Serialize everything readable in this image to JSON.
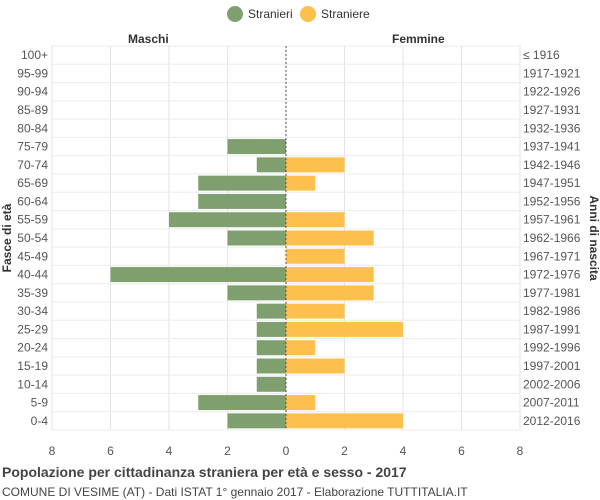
{
  "chart_data": {
    "type": "bar",
    "orientation": "horizontal-population-pyramid",
    "title": "Popolazione per cittadinanza straniera per età e sesso - 2017",
    "subtitle": "COMUNE DI VESIME (AT) - Dati ISTAT 1° gennaio 2017 - Elaborazione TUTTITALIA.IT",
    "left_label": "Maschi",
    "right_label": "Femmine",
    "ylabel_left": "Fasce di età",
    "ylabel_right": "Anni di nascita",
    "xlim": [
      -8,
      8
    ],
    "xticks": [
      -8,
      -6,
      -4,
      -2,
      0,
      2,
      4,
      6,
      8
    ],
    "xtick_labels": [
      "8",
      "6",
      "4",
      "2",
      "0",
      "2",
      "4",
      "6",
      "8"
    ],
    "categories": [
      "100+",
      "95-99",
      "90-94",
      "85-89",
      "80-84",
      "75-79",
      "70-74",
      "65-69",
      "60-64",
      "55-59",
      "50-54",
      "45-49",
      "40-44",
      "35-39",
      "30-34",
      "25-29",
      "20-24",
      "15-19",
      "10-14",
      "5-9",
      "0-4"
    ],
    "birth_years": [
      "≤ 1916",
      "1917-1921",
      "1922-1926",
      "1927-1931",
      "1932-1936",
      "1937-1941",
      "1942-1946",
      "1947-1951",
      "1952-1956",
      "1957-1961",
      "1962-1966",
      "1967-1971",
      "1972-1976",
      "1977-1981",
      "1982-1986",
      "1987-1991",
      "1992-1996",
      "1997-2001",
      "2002-2006",
      "2007-2011",
      "2012-2016"
    ],
    "series": [
      {
        "name": "Stranieri",
        "color": "#7fa06e",
        "values": [
          0,
          0,
          0,
          0,
          0,
          2,
          1,
          3,
          3,
          4,
          2,
          0,
          6,
          2,
          1,
          1,
          1,
          1,
          1,
          3,
          2
        ]
      },
      {
        "name": "Straniere",
        "color": "#fdc04d",
        "values": [
          0,
          0,
          0,
          0,
          0,
          0,
          2,
          1,
          0,
          2,
          3,
          2,
          3,
          3,
          2,
          4,
          1,
          2,
          0,
          1,
          4
        ]
      }
    ]
  }
}
